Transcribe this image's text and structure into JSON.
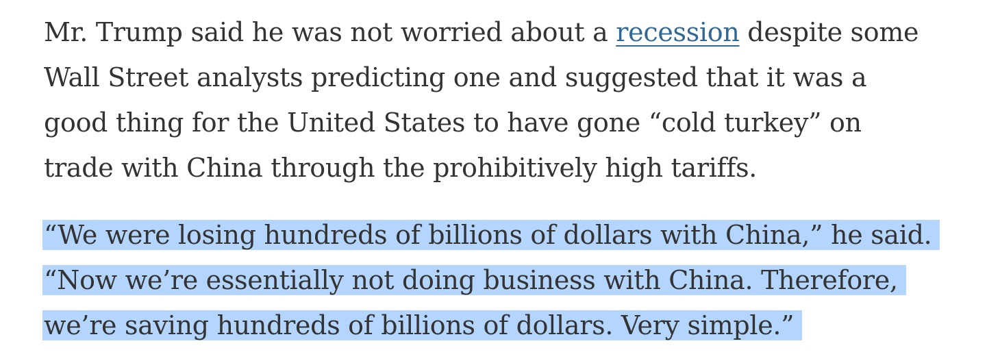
{
  "paragraph1": {
    "l1_before": "Mr. Trump said he was not worried about a ",
    "l1_link": "recession",
    "l1_after": " despite some",
    "l2": "Wall Street analysts predicting one and suggested that it was a",
    "l3": "good thing for the United States to have gone “cold turkey” on",
    "l4": "trade with China through the prohibitively high tariffs."
  },
  "paragraph2": {
    "l1": "“We were losing hundreds of billions of dollars with China,” he said.",
    "l2": "“Now we’re essentially not doing business with China. Therefore,",
    "l3": "we’re saving hundreds of billions of dollars. Very simple.”"
  },
  "colors": {
    "text": "#333333",
    "link": "#326891",
    "selection": "#b4d5fe"
  }
}
